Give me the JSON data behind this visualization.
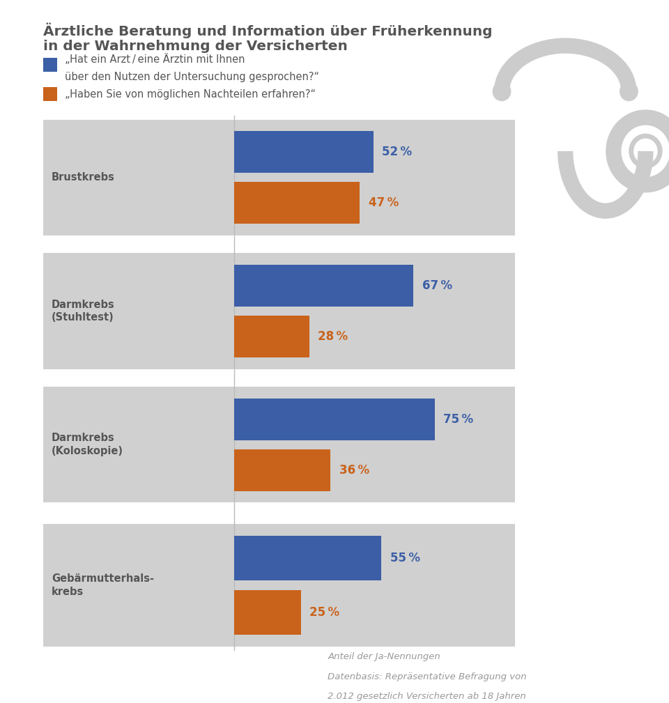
{
  "title_line1": "Ärztliche Beratung und Information über Früherkennung",
  "title_line2": "in der Wahrnehmung der Versicherten",
  "legend_blue_line1": "„Hat ein Arzt / eine Ärztin mit Ihnen",
  "legend_blue_line2": "über den Nutzen der Untersuchung gesprochen?“",
  "legend_orange": "„Haben Sie von möglichen Nachteilen erfahren?“",
  "categories": [
    "Brustkrebs",
    "Darmkrebs\n(Stuhltest)",
    "Darmkrebs\n(Koloskopie)",
    "Gebärmutterhals-\nkrebs"
  ],
  "blue_values": [
    52,
    67,
    75,
    55
  ],
  "orange_values": [
    47,
    28,
    36,
    25
  ],
  "blue_color": "#3B5EA6",
  "orange_color": "#C9621A",
  "label_blue_color": "#3B5EA6",
  "label_orange_color": "#C9621A",
  "bg_color": "#FFFFFF",
  "bar_bg_color": "#D0D0D0",
  "title_color": "#555555",
  "note_line1": "Anteil der Ja-Nennungen",
  "note_line2": "Datenbasis: Repräsentative Befragung von",
  "note_line3": "2.012 gesetzlich Versicherten ab 18 Jahren",
  "steth_color": "#CCCCCC"
}
